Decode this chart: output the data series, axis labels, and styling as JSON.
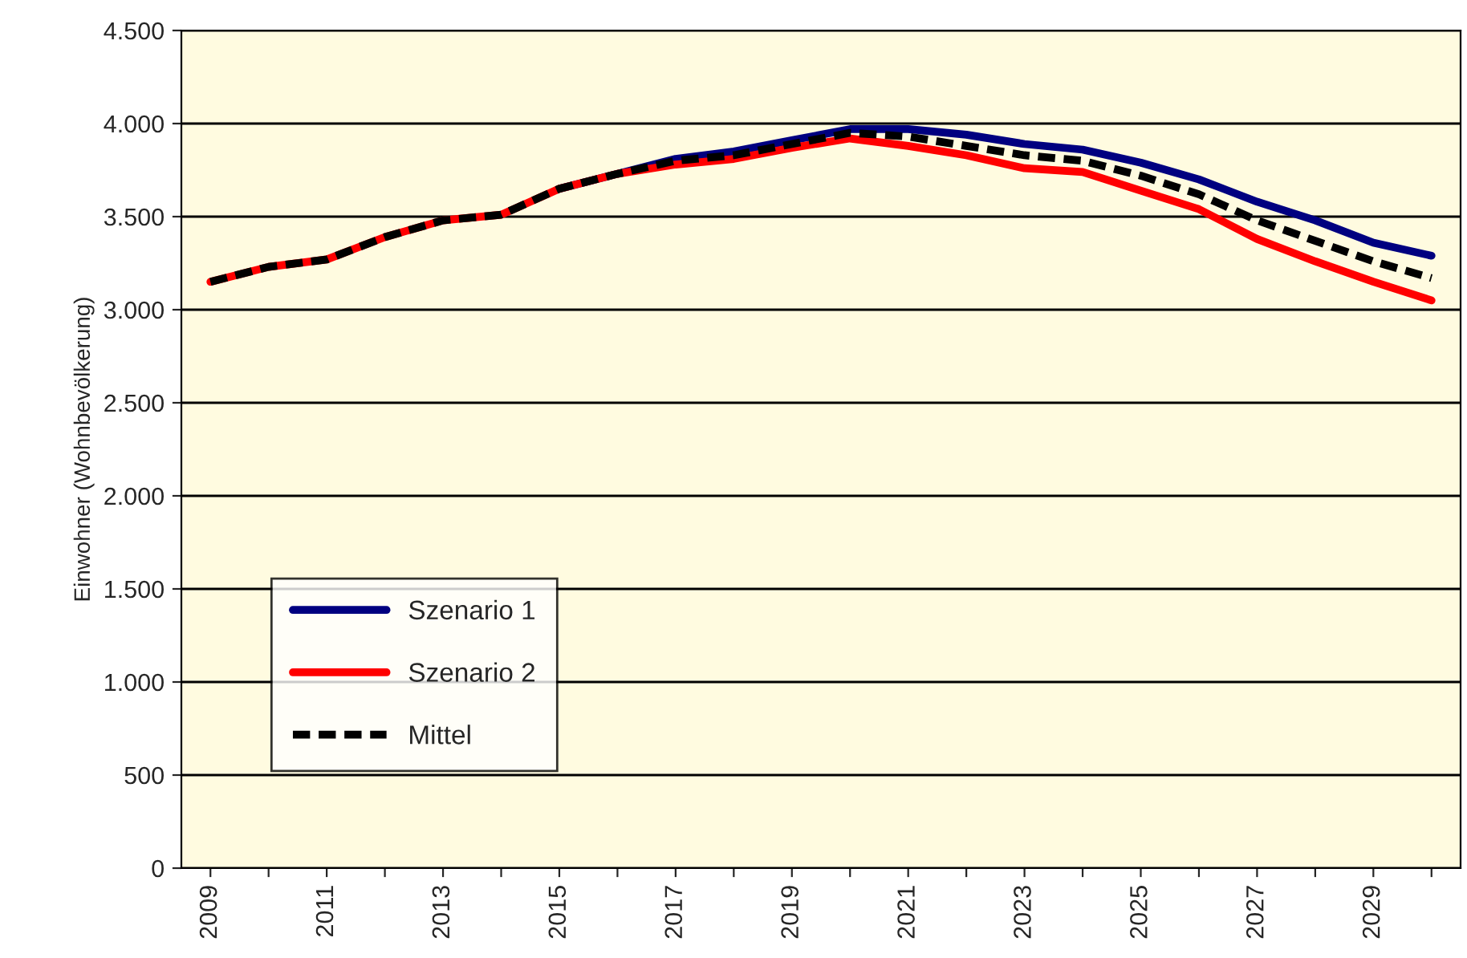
{
  "chart_data": {
    "type": "line",
    "ylabel": "Einwohner (Wohnbevölkerung)",
    "categories": [
      "2009",
      null,
      "2011",
      null,
      "2013",
      null,
      "2015",
      null,
      "2017",
      null,
      "2019",
      null,
      "2021",
      null,
      "2023",
      null,
      "2025",
      null,
      "2027",
      null,
      "2029",
      null
    ],
    "series": [
      {
        "name": "Szenario 1",
        "color": "#000080",
        "line_style": "solid",
        "values": [
          null,
          null,
          null,
          null,
          null,
          null,
          3650,
          3730,
          3810,
          3850,
          3910,
          3970,
          3970,
          3940,
          3890,
          3860,
          3790,
          3700,
          3580,
          3480,
          3360,
          3290
        ]
      },
      {
        "name": "Szenario 2",
        "color": "#ff0000",
        "line_style": "solid",
        "values": [
          3150,
          3230,
          3270,
          3390,
          3480,
          3510,
          3650,
          3730,
          3780,
          3810,
          3870,
          3920,
          3880,
          3830,
          3760,
          3740,
          3640,
          3540,
          3380,
          3260,
          3150,
          3050
        ]
      },
      {
        "name": "Mittel",
        "color": "#000000",
        "line_style": "dashed",
        "values": [
          3150,
          3230,
          3270,
          3390,
          3480,
          3510,
          3650,
          3730,
          3800,
          3830,
          3890,
          3950,
          3930,
          3880,
          3830,
          3800,
          3720,
          3620,
          3480,
          3370,
          3260,
          3170
        ]
      }
    ],
    "ylim": [
      0,
      4500
    ],
    "yticks": [
      0,
      500,
      {
        "value": 1000,
        "label": "1.000"
      },
      {
        "value": 1500,
        "label": "1.500"
      },
      {
        "value": 2000,
        "label": "2.000"
      },
      {
        "value": 2500,
        "label": "2.500"
      },
      {
        "value": 3000,
        "label": "3.000"
      },
      {
        "value": 3500,
        "label": "3.500"
      },
      {
        "value": 4000,
        "label": "4.000"
      },
      {
        "value": 4500,
        "label": "4.500"
      }
    ],
    "grid": "y",
    "legend": "bottom left",
    "marker": "none"
  }
}
